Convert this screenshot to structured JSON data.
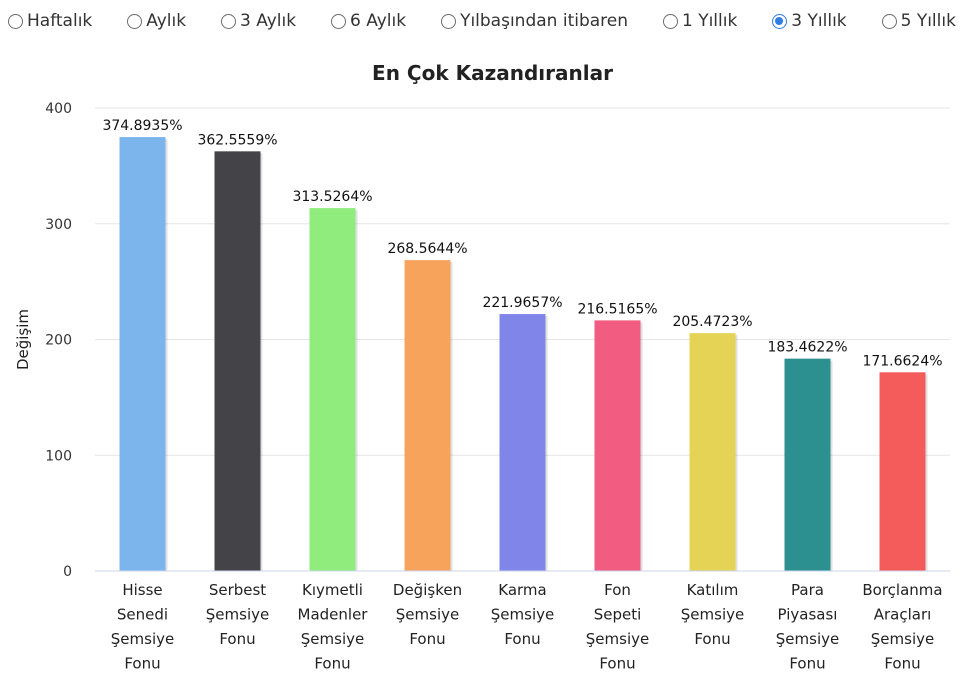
{
  "period_options": [
    {
      "label": "Haftalık",
      "checked": false
    },
    {
      "label": "Aylık",
      "checked": false
    },
    {
      "label": "3 Aylık",
      "checked": false
    },
    {
      "label": "6 Aylık",
      "checked": false
    },
    {
      "label": "Yılbaşından itibaren",
      "checked": false
    },
    {
      "label": "1 Yıllık",
      "checked": false
    },
    {
      "label": "3 Yıllık",
      "checked": true
    },
    {
      "label": "5 Yıllık",
      "checked": false
    }
  ],
  "chart_data": {
    "type": "bar",
    "title": "En Çok Kazandıranlar",
    "ylabel": "Değişim",
    "xlabel": "",
    "ylim": [
      0,
      400
    ],
    "yticks": [
      0,
      100,
      200,
      300,
      400
    ],
    "grid": true,
    "categories": [
      "Hisse Senedi Şemsiye Fonu",
      "Serbest Şemsiye Fonu",
      "Kıymetli Madenler Şemsiye Fonu",
      "Değişken Şemsiye Fonu",
      "Karma Şemsiye Fonu",
      "Fon Sepeti Şemsiye Fonu",
      "Katılım Şemsiye Fonu",
      "Para Piyasası Şemsiye Fonu",
      "Borçlanma Araçları Şemsiye Fonu"
    ],
    "values": [
      374.8935,
      362.5559,
      313.5264,
      268.5644,
      221.9657,
      216.5165,
      205.4723,
      183.4622,
      171.6624
    ],
    "data_labels": [
      "374.8935%",
      "362.5559%",
      "313.5264%",
      "268.5644%",
      "221.9657%",
      "216.5165%",
      "205.4723%",
      "183.4622%",
      "171.6624%"
    ],
    "colors": [
      "#7cb5ec",
      "#434348",
      "#90ed7d",
      "#f7a35c",
      "#8085e9",
      "#f15c80",
      "#e4d354",
      "#2b908f",
      "#f45b5b"
    ]
  }
}
